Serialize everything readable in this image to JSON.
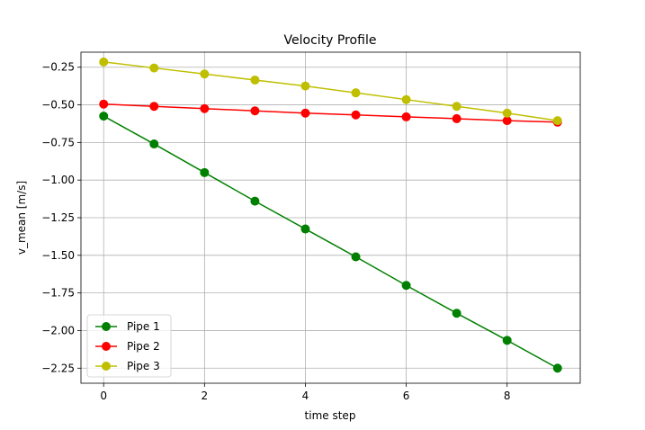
{
  "chart_data": {
    "type": "line",
    "title": "Velocity Profile",
    "xlabel": "time step",
    "ylabel": "v_mean [m/s]",
    "xlim": [
      -0.45,
      9.45
    ],
    "ylim": [
      -2.35,
      -0.15
    ],
    "xticks": [
      0,
      2,
      4,
      6,
      8
    ],
    "xtick_labels": [
      "0",
      "2",
      "4",
      "6",
      "8"
    ],
    "yticks": [
      -2.25,
      -2.0,
      -1.75,
      -1.5,
      -1.25,
      -1.0,
      -0.75,
      -0.5,
      -0.25
    ],
    "ytick_labels": [
      "−2.25",
      "−2.00",
      "−1.75",
      "−1.50",
      "−1.25",
      "−1.00",
      "−0.75",
      "−0.50",
      "−0.25"
    ],
    "grid": true,
    "legend_position": "lower-left",
    "x": [
      0,
      1,
      2,
      3,
      4,
      5,
      6,
      7,
      8,
      9
    ],
    "series": [
      {
        "name": "Pipe 1",
        "color": "#008000",
        "marker": "circle",
        "values": [
          -0.575,
          -0.76,
          -0.95,
          -1.14,
          -1.325,
          -1.51,
          -1.7,
          -1.885,
          -2.065,
          -2.25
        ]
      },
      {
        "name": "Pipe 2",
        "color": "#ff0000",
        "marker": "circle",
        "values": [
          -0.495,
          -0.51,
          -0.525,
          -0.54,
          -0.555,
          -0.567,
          -0.58,
          -0.592,
          -0.605,
          -0.615
        ]
      },
      {
        "name": "Pipe 3",
        "color": "#bfbf00",
        "marker": "circle",
        "values": [
          -0.215,
          -0.255,
          -0.295,
          -0.335,
          -0.375,
          -0.42,
          -0.465,
          -0.51,
          -0.555,
          -0.605
        ]
      }
    ]
  }
}
